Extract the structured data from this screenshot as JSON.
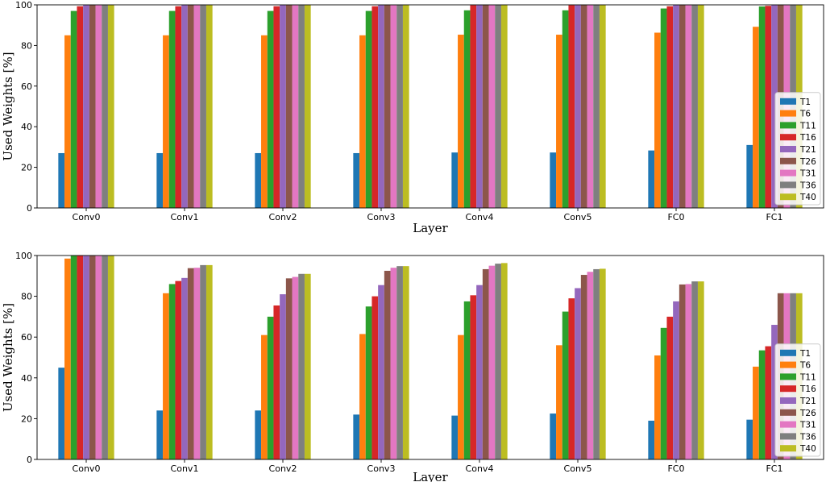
{
  "chart_data": [
    {
      "type": "bar",
      "title": "",
      "xlabel": "Layer",
      "ylabel": "Used Weights [%]",
      "ylim": [
        0,
        100
      ],
      "yticks": [
        0,
        20,
        40,
        60,
        80,
        100
      ],
      "legend_position": "lower-right",
      "categories": [
        "Conv0",
        "Conv1",
        "Conv2",
        "Conv3",
        "Conv4",
        "Conv5",
        "FC0",
        "FC1"
      ],
      "series": [
        {
          "name": "T1",
          "color": "#1f77b4",
          "values": [
            27,
            27,
            27,
            27,
            27.3,
            27.3,
            28.3,
            31
          ]
        },
        {
          "name": "T6",
          "color": "#ff7f0e",
          "values": [
            85,
            85,
            85,
            85,
            85.3,
            85.3,
            86.3,
            89.2
          ]
        },
        {
          "name": "T11",
          "color": "#2ca02c",
          "values": [
            97,
            97,
            97,
            97,
            97.3,
            97.3,
            98.2,
            99.2
          ]
        },
        {
          "name": "T16",
          "color": "#d62728",
          "values": [
            99.3,
            99.3,
            99.3,
            99.3,
            99.8,
            99.8,
            99.3,
            99.5
          ]
        },
        {
          "name": "T21",
          "color": "#9467bd",
          "values": [
            100,
            100,
            100,
            100,
            100,
            100,
            100,
            100
          ]
        },
        {
          "name": "T26",
          "color": "#8c564b",
          "values": [
            100,
            100,
            100,
            100,
            100,
            100,
            100,
            100
          ]
        },
        {
          "name": "T31",
          "color": "#e377c2",
          "values": [
            100,
            100,
            100,
            100,
            100,
            100,
            100,
            100
          ]
        },
        {
          "name": "T36",
          "color": "#7f7f7f",
          "values": [
            100,
            100,
            100,
            100,
            100,
            100,
            100,
            100
          ]
        },
        {
          "name": "T40",
          "color": "#bcbd22",
          "values": [
            100,
            100,
            100,
            100,
            100,
            100,
            100,
            100
          ]
        }
      ]
    },
    {
      "type": "bar",
      "title": "",
      "xlabel": "Layer",
      "ylabel": "Used Weights [%]",
      "ylim": [
        0,
        100
      ],
      "yticks": [
        0,
        20,
        40,
        60,
        80,
        100
      ],
      "legend_position": "lower-right",
      "categories": [
        "Conv0",
        "Conv1",
        "Conv2",
        "Conv3",
        "Conv4",
        "Conv5",
        "FC0",
        "FC1"
      ],
      "series": [
        {
          "name": "T1",
          "color": "#1f77b4",
          "values": [
            45,
            24,
            24,
            22,
            21.5,
            22.5,
            19,
            19.5
          ]
        },
        {
          "name": "T6",
          "color": "#ff7f0e",
          "values": [
            98.5,
            81.5,
            61,
            61.5,
            61,
            56,
            51,
            45.5
          ]
        },
        {
          "name": "T11",
          "color": "#2ca02c",
          "values": [
            100,
            86,
            70,
            75,
            77.5,
            72.5,
            64.5,
            53.5
          ]
        },
        {
          "name": "T16",
          "color": "#d62728",
          "values": [
            100,
            87.5,
            75.5,
            80,
            80.5,
            79,
            70,
            55.5
          ]
        },
        {
          "name": "T21",
          "color": "#9467bd",
          "values": [
            100,
            89,
            81,
            85.5,
            85.5,
            84,
            77.5,
            66
          ]
        },
        {
          "name": "T26",
          "color": "#8c564b",
          "values": [
            100,
            93.8,
            88.8,
            92.5,
            93.3,
            90.5,
            85.8,
            81.5
          ]
        },
        {
          "name": "T31",
          "color": "#e377c2",
          "values": [
            100,
            94,
            89.5,
            94,
            95,
            92,
            86,
            81.5
          ]
        },
        {
          "name": "T36",
          "color": "#7f7f7f",
          "values": [
            100,
            95.3,
            91,
            94.8,
            96,
            93.3,
            87.3,
            81.5
          ]
        },
        {
          "name": "T40",
          "color": "#bcbd22",
          "values": [
            100,
            95.3,
            91,
            94.8,
            96.3,
            93.5,
            87.3,
            81.5
          ]
        }
      ]
    }
  ]
}
